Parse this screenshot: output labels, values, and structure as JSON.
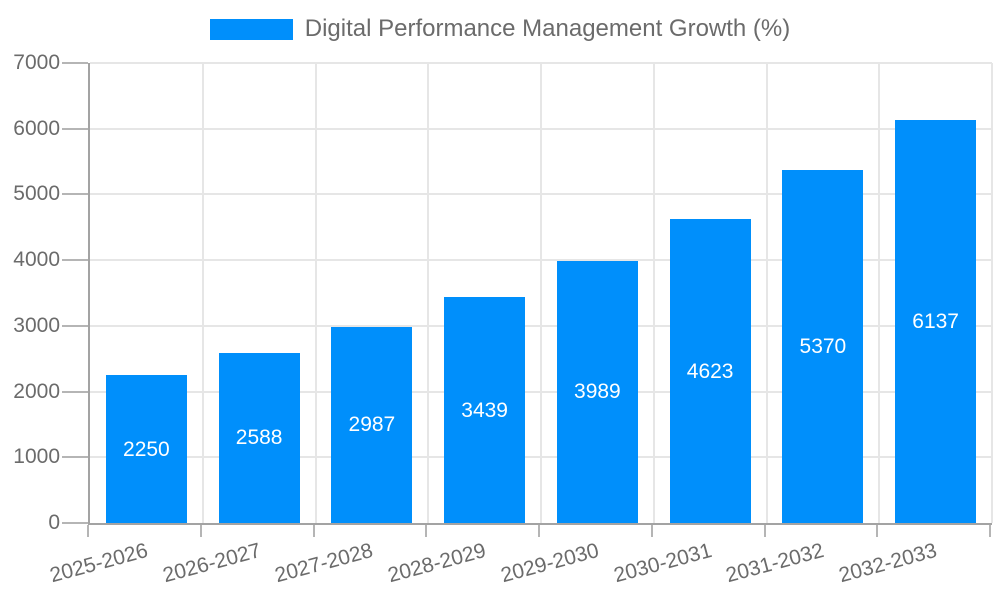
{
  "legend": {
    "label": "Digital Performance Management Growth (%)"
  },
  "chart_data": {
    "type": "bar",
    "title": "Digital Performance Management Growth (%)",
    "categories": [
      "2025-2026",
      "2026-2027",
      "2027-2028",
      "2028-2029",
      "2029-2030",
      "2030-2031",
      "2031-2032",
      "2032-2033"
    ],
    "values": [
      2250,
      2588,
      2987,
      3439,
      3989,
      4623,
      5370,
      6137
    ],
    "xlabel": "",
    "ylabel": "",
    "ylim": [
      0,
      7000
    ],
    "yticks": [
      0,
      1000,
      2000,
      3000,
      4000,
      5000,
      6000,
      7000
    ],
    "grid": true,
    "legend_position": "top",
    "value_label_position": "inside-center"
  },
  "colors": {
    "bar": "#008FFB",
    "grid": "#e6e6e6",
    "axis": "#a3a3a3",
    "tick": "#b5b5b5",
    "text": "#6b6b6b",
    "value_label": "#ffffff",
    "background": "#ffffff"
  }
}
